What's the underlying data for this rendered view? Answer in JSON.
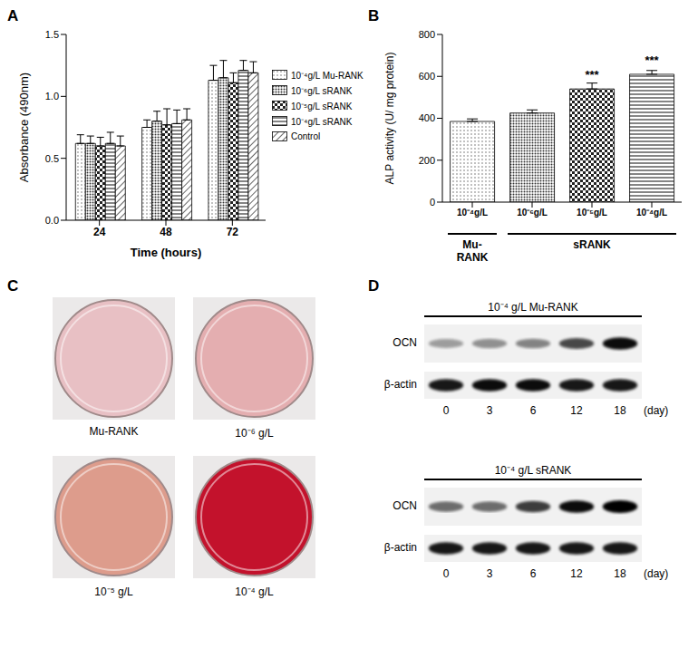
{
  "panel_labels": [
    "A",
    "B",
    "C",
    "D"
  ],
  "chart_data": [
    {
      "type": "bar",
      "x_label": "Time (hours)",
      "y_label": "Absorbance (490nm)",
      "categories": [
        "24",
        "48",
        "72"
      ],
      "series": [
        {
          "name": "10⁻⁴g/L Mu-RANK",
          "color": "#555555",
          "values": [
            0.62,
            0.75,
            1.13
          ],
          "errors": [
            0.07,
            0.06,
            0.12
          ]
        },
        {
          "name": "10⁻⁶g/L sRANK",
          "color": "#333333",
          "values": [
            0.62,
            0.8,
            1.15
          ],
          "errors": [
            0.06,
            0.08,
            0.14
          ]
        },
        {
          "name": "10⁻⁵g/L sRANK",
          "color": "#222222",
          "values": [
            0.6,
            0.77,
            1.11
          ],
          "errors": [
            0.07,
            0.13,
            0.08
          ]
        },
        {
          "name": "10⁻⁴g/L sRANK",
          "color": "#333333",
          "values": [
            0.62,
            0.78,
            1.21
          ],
          "errors": [
            0.09,
            0.11,
            0.08
          ]
        },
        {
          "name": "Control",
          "color": "#333333",
          "values": [
            0.6,
            0.81,
            1.19
          ],
          "errors": [
            0.08,
            0.09,
            0.09
          ]
        }
      ],
      "ylim": [
        0,
        1.5
      ],
      "yticks": [
        {
          "value": 0,
          "label": "0.0"
        },
        {
          "value": 0.5,
          "label": "0.5"
        },
        {
          "value": 1,
          "label": "1.0"
        },
        {
          "value": 1.5,
          "label": "1.5"
        }
      ],
      "legend": "right"
    },
    {
      "type": "bar",
      "y_label": "ALP activity (U/ mg protein)",
      "categories": [
        "10⁻⁴g/L",
        "10⁻⁶g/L",
        "10⁻⁵g/L",
        "10⁻⁴g/L"
      ],
      "values": [
        385,
        425,
        540,
        610
      ],
      "errors": [
        12,
        15,
        28,
        18
      ],
      "colors": [
        "#555555",
        "#333333",
        "#222222",
        "#333333"
      ],
      "annotations": [
        null,
        null,
        "***",
        "***"
      ],
      "groups": [
        {
          "label": "Mu-RANK",
          "from": 0,
          "to": 0
        },
        {
          "label": "sRANK",
          "from": 1,
          "to": 3
        }
      ],
      "ylim": [
        0,
        800
      ],
      "yticks": [
        0,
        200,
        400,
        600,
        800
      ]
    }
  ],
  "images": {
    "dishes": [
      {
        "label": "Mu-RANK",
        "color": "#e8c0c4"
      },
      {
        "label": "10⁻⁶ g/L",
        "color": "#e4aeb0"
      },
      {
        "label": "10⁻⁵ g/L",
        "color": "#dd9c8c"
      },
      {
        "label": "10⁻⁴ g/L",
        "color": "#c3122c"
      }
    ]
  },
  "blots": {
    "rows": [
      "OCN",
      "β-actin"
    ],
    "lane_labels": [
      "0",
      "3",
      "6",
      "12",
      "18"
    ],
    "lane_unit": "(day)",
    "panels": [
      {
        "title": "10⁻⁴ g/L Mu-RANK",
        "intensities": [
          [
            0.35,
            0.4,
            0.45,
            0.7,
            0.95
          ],
          [
            0.9,
            0.95,
            0.95,
            0.9,
            0.9
          ]
        ]
      },
      {
        "title": "10⁻⁴ g/L sRANK",
        "intensities": [
          [
            0.55,
            0.55,
            0.75,
            0.95,
            1.0
          ],
          [
            0.9,
            0.9,
            0.9,
            0.9,
            0.9
          ]
        ]
      }
    ]
  }
}
